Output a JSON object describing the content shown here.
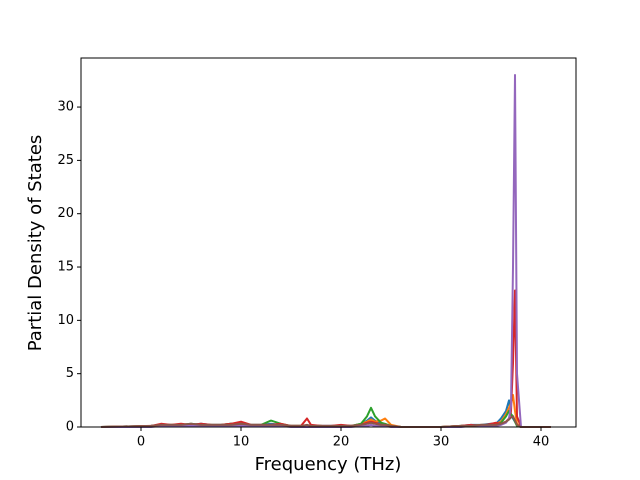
{
  "chart_data": {
    "type": "line",
    "x_label": "Frequency (THz)",
    "y_label": "Partial Density of States",
    "x": [
      -4,
      1,
      2,
      3,
      4,
      5,
      6,
      7,
      8,
      9,
      10,
      11,
      12,
      13,
      14,
      15,
      16,
      16.6,
      17,
      18,
      19,
      20,
      21,
      22,
      22.6,
      23,
      23.4,
      24,
      24.4,
      25,
      26,
      30,
      32,
      33,
      34,
      35,
      35.5,
      36,
      36.5,
      36.8,
      37,
      37.2,
      37.4,
      37.6,
      38,
      41
    ],
    "series": [
      {
        "color": "#1f77b4",
        "values": [
          0,
          0.1,
          0.2,
          0.2,
          0.1,
          0.2,
          0.3,
          0.2,
          0.2,
          0.3,
          0.3,
          0.2,
          0.2,
          0.3,
          0.2,
          0.1,
          0.1,
          0.1,
          0.1,
          0.1,
          0.1,
          0.1,
          0.1,
          0.3,
          0.6,
          0.9,
          0.6,
          0.3,
          0.2,
          0.1,
          0,
          0,
          0.1,
          0.2,
          0.2,
          0.3,
          0.3,
          0.8,
          1.5,
          2.5,
          1.2,
          0.8,
          0.5,
          0.2,
          0,
          0
        ]
      },
      {
        "color": "#ff7f0e",
        "values": [
          0,
          0.05,
          0.1,
          0.2,
          0.2,
          0.1,
          0.2,
          0.2,
          0.1,
          0.2,
          0.2,
          0.1,
          0.1,
          0.2,
          0.2,
          0.1,
          0.1,
          0.1,
          0.1,
          0.1,
          0,
          0.1,
          0.1,
          0.3,
          0.5,
          0.7,
          0.5,
          0.6,
          0.8,
          0.2,
          0,
          0,
          0.1,
          0.1,
          0.2,
          0.2,
          0.3,
          0.5,
          1.2,
          1.8,
          2.2,
          3.0,
          1.5,
          0.3,
          0,
          0
        ]
      },
      {
        "color": "#2ca02c",
        "values": [
          0,
          0.1,
          0.2,
          0.2,
          0.2,
          0.3,
          0.2,
          0.2,
          0.2,
          0.3,
          0.3,
          0.2,
          0.2,
          0.6,
          0.3,
          0.1,
          0.1,
          0.1,
          0.1,
          0.1,
          0,
          0.1,
          0.1,
          0.3,
          1.0,
          1.8,
          1.0,
          0.4,
          0.3,
          0.1,
          0,
          0,
          0.1,
          0.1,
          0.1,
          0.2,
          0.2,
          0.4,
          1.0,
          1.5,
          1.2,
          1.0,
          0.5,
          0.1,
          0,
          0
        ]
      },
      {
        "color": "#d62728",
        "values": [
          0,
          0.1,
          0.3,
          0.2,
          0.3,
          0.2,
          0.3,
          0.2,
          0.2,
          0.3,
          0.5,
          0.2,
          0.2,
          0.2,
          0.3,
          0.1,
          0.1,
          0.8,
          0.2,
          0.1,
          0.1,
          0.2,
          0.1,
          0.2,
          0.4,
          0.5,
          0.4,
          0.2,
          0.2,
          0.1,
          0,
          0,
          0.1,
          0.2,
          0.1,
          0.3,
          0.4,
          0.3,
          0.5,
          0.8,
          1.5,
          6.0,
          12.8,
          1.0,
          0,
          0
        ]
      },
      {
        "color": "#9467bd",
        "values": [
          0,
          0,
          0.1,
          0.1,
          0.1,
          0.1,
          0.1,
          0.1,
          0.1,
          0.1,
          0.1,
          0.1,
          0.1,
          0.1,
          0.1,
          0,
          0,
          0,
          0,
          0,
          0,
          0,
          0,
          0.1,
          0.1,
          0.2,
          0.1,
          0.1,
          0.1,
          0,
          0,
          0,
          0,
          0.1,
          0.1,
          0.1,
          0.1,
          0.2,
          0.4,
          0.8,
          2.0,
          15.0,
          33.0,
          5.0,
          0,
          0
        ]
      },
      {
        "color": "#8c564b",
        "values": [
          0,
          0.1,
          0.2,
          0.2,
          0.2,
          0.3,
          0.2,
          0.2,
          0.2,
          0.2,
          0.3,
          0.2,
          0.2,
          0.2,
          0.2,
          0.1,
          0.1,
          0.2,
          0.1,
          0.1,
          0.1,
          0.1,
          0.1,
          0.2,
          0.3,
          0.4,
          0.3,
          0.2,
          0.2,
          0.1,
          0,
          0,
          0.1,
          0.1,
          0.2,
          0.2,
          0.2,
          0.3,
          0.5,
          0.7,
          0.9,
          1.0,
          0.6,
          0.2,
          0,
          0
        ]
      }
    ],
    "xlim": [
      -6,
      43.5
    ],
    "xticks": [
      0,
      10,
      20,
      30,
      40
    ],
    "ylim": [
      0,
      34.6
    ],
    "yticks": [
      0,
      5,
      10,
      15,
      20,
      25,
      30
    ]
  }
}
